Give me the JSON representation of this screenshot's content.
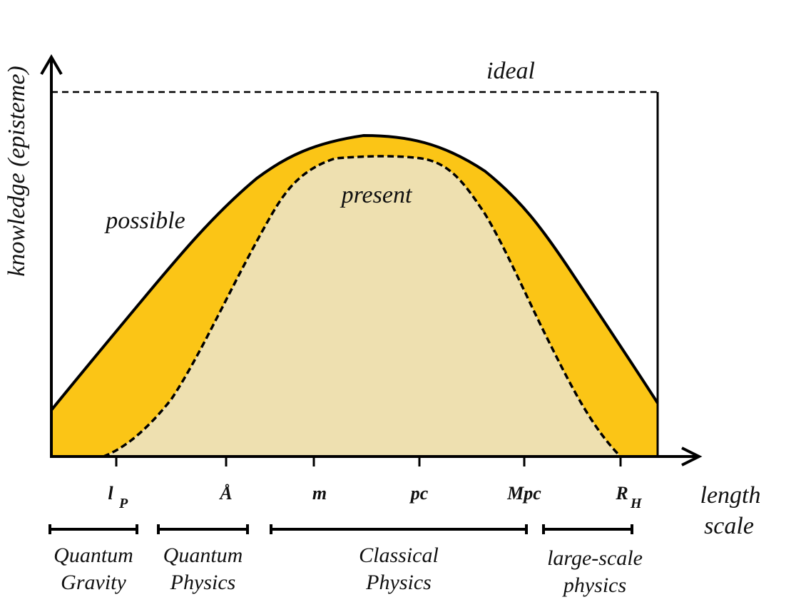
{
  "axes": {
    "y_label": "knowledge (episteme)",
    "x_label": [
      "length",
      "scale"
    ]
  },
  "curves": {
    "ideal": "ideal",
    "possible": "possible",
    "present": "present"
  },
  "ticks": [
    {
      "label": "l",
      "sub": "P"
    },
    {
      "label": "Å"
    },
    {
      "label": "m"
    },
    {
      "label": "pc"
    },
    {
      "label": "Mpc"
    },
    {
      "label": "R",
      "sub": "H"
    }
  ],
  "regions": [
    {
      "lines": [
        "Quantum",
        "Gravity"
      ]
    },
    {
      "lines": [
        "Quantum",
        "Physics"
      ]
    },
    {
      "lines": [
        "Classical",
        "Physics"
      ]
    },
    {
      "lines": [
        "large-scale",
        "physics"
      ]
    }
  ]
}
